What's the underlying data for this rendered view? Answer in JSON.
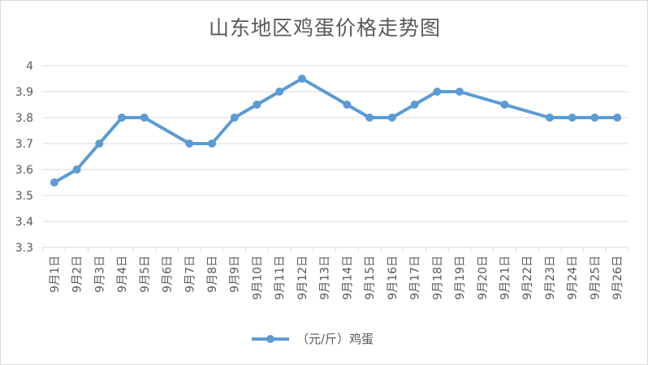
{
  "chart_data": {
    "type": "line",
    "title": "山东地区鸡蛋价格走势图",
    "categories": [
      "9月1日",
      "9月2日",
      "9月3日",
      "9月4日",
      "9月5日",
      "9月6日",
      "9月7日",
      "9月8日",
      "9月9日",
      "9月10日",
      "9月11日",
      "9月12日",
      "9月13日",
      "9月14日",
      "9月15日",
      "9月16日",
      "9月17日",
      "9月18日",
      "9月19日",
      "9月20日",
      "9月21日",
      "9月22日",
      "9月23日",
      "9月24日",
      "9月25日",
      "9月26日"
    ],
    "series": [
      {
        "name": "（元/斤）鸡蛋",
        "values": [
          3.55,
          3.6,
          3.7,
          3.8,
          3.8,
          null,
          3.7,
          3.7,
          3.8,
          3.85,
          3.9,
          3.95,
          null,
          3.85,
          3.8,
          3.8,
          3.85,
          3.9,
          3.9,
          null,
          3.85,
          null,
          3.8,
          3.8,
          3.8,
          3.8
        ],
        "color": "#5b9bd5"
      }
    ],
    "ylim": [
      3.3,
      4
    ],
    "yticks": [
      "3.3",
      "3.4",
      "3.5",
      "3.6",
      "3.7",
      "3.8",
      "3.9",
      "4"
    ],
    "xlabel": "",
    "ylabel": "",
    "grid": true,
    "legend_position": "bottom"
  }
}
